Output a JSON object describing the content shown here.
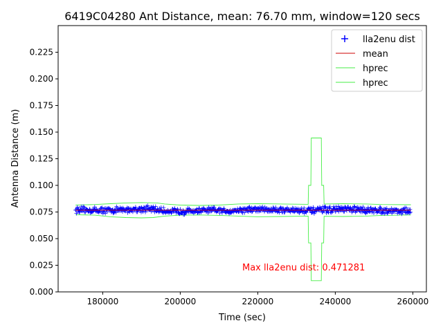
{
  "chart_data": {
    "type": "scatter",
    "title": "6419C04280 Ant Distance, mean: 76.70 mm, window=120 secs",
    "xlabel": "Time (sec)",
    "ylabel": "Antenna Distance (m)",
    "xlim": [
      168500,
      263500
    ],
    "ylim": [
      0.0,
      0.25
    ],
    "xticks": [
      180000,
      200000,
      220000,
      240000,
      260000
    ],
    "yticks": [
      0.0,
      0.025,
      0.05,
      0.075,
      0.1,
      0.125,
      0.15,
      0.175,
      0.2,
      0.225
    ],
    "grid": false,
    "legend_position": "top-right",
    "series": [
      {
        "name": "lla2enu dist",
        "kind": "scatter",
        "marker": "+",
        "color": "#0000ff",
        "x_range": [
          173000,
          259500
        ],
        "base_points": [
          [
            173000,
            0.077
          ],
          [
            180000,
            0.0765
          ],
          [
            186000,
            0.077
          ],
          [
            190000,
            0.078
          ],
          [
            193000,
            0.0775
          ],
          [
            196000,
            0.076
          ],
          [
            200000,
            0.0755
          ],
          [
            204000,
            0.076
          ],
          [
            208000,
            0.0765
          ],
          [
            212000,
            0.076
          ],
          [
            216000,
            0.077
          ],
          [
            220000,
            0.0775
          ],
          [
            226000,
            0.077
          ],
          [
            232000,
            0.0765
          ],
          [
            234000,
            0.076
          ],
          [
            237000,
            0.077
          ],
          [
            242000,
            0.0775
          ],
          [
            246000,
            0.077
          ],
          [
            252000,
            0.0765
          ],
          [
            259500,
            0.076
          ]
        ],
        "noise_amplitude": 0.0035
      },
      {
        "name": "mean",
        "kind": "line",
        "color": "#cc0000",
        "points": [
          [
            173000,
            0.0767
          ],
          [
            259500,
            0.0767
          ]
        ]
      },
      {
        "name": "hprec",
        "kind": "line",
        "color": "#44ee44",
        "points": [
          [
            173000,
            0.0815
          ],
          [
            178000,
            0.082
          ],
          [
            182000,
            0.0828
          ],
          [
            186000,
            0.0835
          ],
          [
            190000,
            0.0838
          ],
          [
            194000,
            0.0835
          ],
          [
            196000,
            0.0825
          ],
          [
            200000,
            0.0815
          ],
          [
            205000,
            0.0812
          ],
          [
            210000,
            0.0815
          ],
          [
            215000,
            0.0825
          ],
          [
            220000,
            0.0828
          ],
          [
            226000,
            0.0825
          ],
          [
            233000,
            0.0822
          ],
          [
            233100,
            0.1
          ],
          [
            233700,
            0.1
          ],
          [
            233800,
            0.1445
          ],
          [
            236400,
            0.1445
          ],
          [
            236500,
            0.1
          ],
          [
            237000,
            0.1
          ],
          [
            237100,
            0.0825
          ],
          [
            242000,
            0.0828
          ],
          [
            248000,
            0.0825
          ],
          [
            252000,
            0.082
          ],
          [
            259500,
            0.0818
          ]
        ]
      },
      {
        "name": "hprec",
        "kind": "line",
        "color": "#44ee44",
        "points": [
          [
            173000,
            0.0725
          ],
          [
            178000,
            0.072
          ],
          [
            182000,
            0.0705
          ],
          [
            186000,
            0.0698
          ],
          [
            190000,
            0.0695
          ],
          [
            193000,
            0.0698
          ],
          [
            196000,
            0.0712
          ],
          [
            200000,
            0.072
          ],
          [
            205000,
            0.0722
          ],
          [
            210000,
            0.0718
          ],
          [
            215000,
            0.0712
          ],
          [
            220000,
            0.0705
          ],
          [
            226000,
            0.0708
          ],
          [
            233000,
            0.0712
          ],
          [
            233100,
            0.046
          ],
          [
            233700,
            0.046
          ],
          [
            233800,
            0.0105
          ],
          [
            236400,
            0.0105
          ],
          [
            236500,
            0.046
          ],
          [
            237000,
            0.046
          ],
          [
            237100,
            0.071
          ],
          [
            242000,
            0.0708
          ],
          [
            248000,
            0.0712
          ],
          [
            252000,
            0.0718
          ],
          [
            259500,
            0.0722
          ]
        ]
      }
    ],
    "annotations": [
      {
        "text": "Max lla2enu dist: 0.471281",
        "x": 216000,
        "y": 0.02,
        "color": "#ff0000"
      }
    ]
  }
}
